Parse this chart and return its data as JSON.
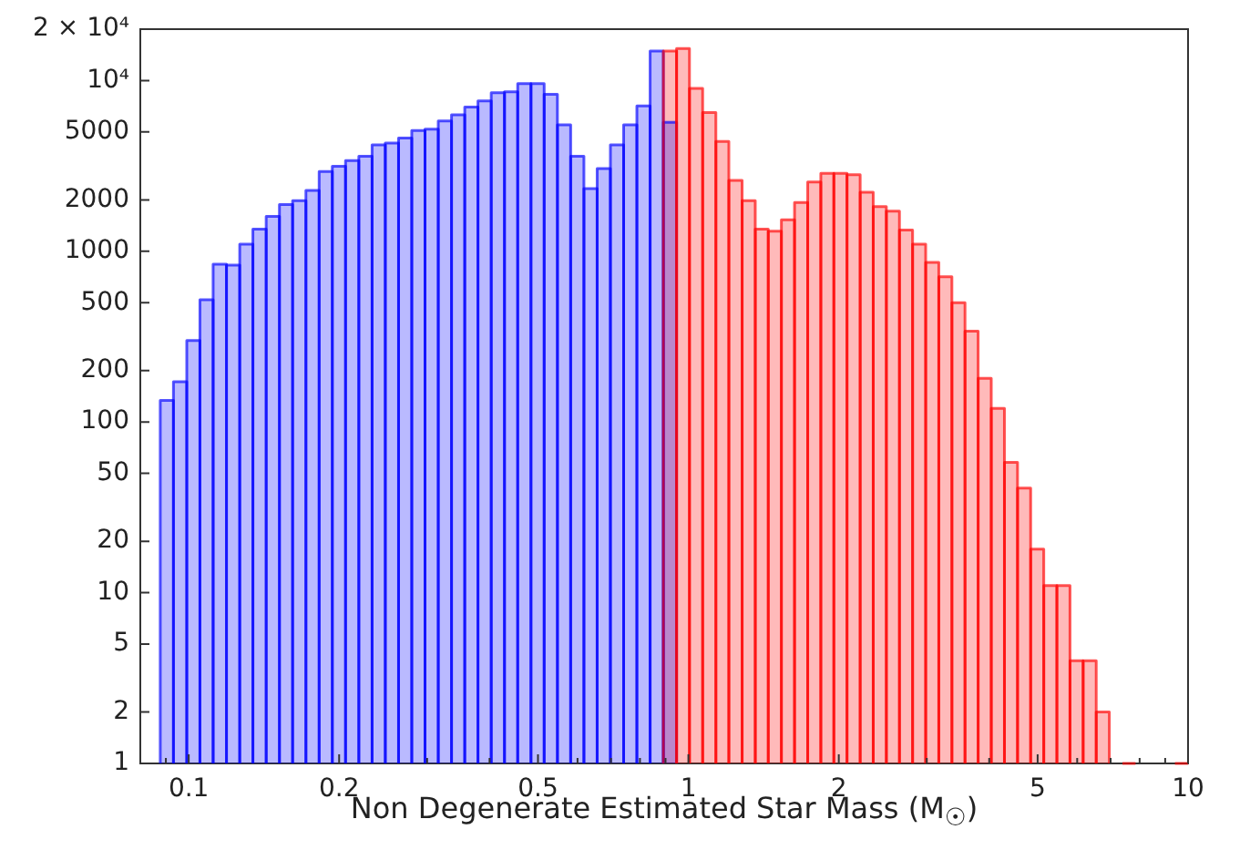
{
  "chart_data": {
    "type": "histogram",
    "xlabel": "Non Degenerate Estimated Star Mass (M$_{☉}$)",
    "log": "xy",
    "xlim": [
      0.08,
      10
    ],
    "ylim": [
      1,
      20000
    ],
    "xticks": [
      {
        "value": 0.09,
        "label": null
      },
      0.1,
      0.2,
      {
        "value": 0.3,
        "label": null
      },
      {
        "value": 0.4,
        "label": null
      },
      0.5,
      {
        "value": 0.6,
        "label": null
      },
      {
        "value": 0.7,
        "label": null
      },
      {
        "value": 0.8,
        "label": null
      },
      {
        "value": 0.9,
        "label": null
      },
      1,
      2,
      {
        "value": 3,
        "label": null
      },
      {
        "value": 4,
        "label": null
      },
      5,
      {
        "value": 6,
        "label": null
      },
      {
        "value": 7,
        "label": null
      },
      {
        "value": 8,
        "label": null
      },
      {
        "value": 9,
        "label": null
      },
      10
    ],
    "yticks": [
      1,
      2,
      5,
      10,
      20,
      50,
      100,
      200,
      500,
      1000,
      2000,
      5000,
      {
        "value": 10000,
        "label": "10⁴"
      },
      {
        "value": 20000,
        "label": "2 × 10⁴"
      }
    ],
    "bins": [
      0.0877,
      0.0932,
      0.0991,
      0.1053,
      0.1119,
      0.119,
      0.1265,
      0.1344,
      0.1429,
      0.1519,
      0.1614,
      0.1716,
      0.1824,
      0.1938,
      0.206,
      0.219,
      0.2328,
      0.2474,
      0.263,
      0.2795,
      0.2971,
      0.3158,
      0.3357,
      0.3568,
      0.3792,
      0.4031,
      0.4285,
      0.4554,
      0.4841,
      0.5145,
      0.5469,
      0.5813,
      0.6179,
      0.6568,
      0.6981,
      0.742,
      0.7887,
      0.8383,
      0.891,
      0.947,
      1.005,
      1.068,
      1.135,
      1.205,
      1.281,
      1.361,
      1.445,
      1.535,
      1.631,
      1.733,
      1.841,
      1.955,
      2.077,
      2.207,
      2.344,
      2.49,
      2.645,
      2.81,
      2.985,
      3.171,
      3.368,
      3.578,
      3.801,
      4.038,
      4.291,
      4.558,
      4.842,
      5.143,
      5.464,
      5.804,
      6.166,
      6.55,
      6.958,
      7.391,
      7.852,
      8.341,
      8.861,
      9.413,
      10
    ],
    "series": [
      {
        "color": "#0000ff",
        "values": [
          134,
          172,
          300,
          520,
          840,
          830,
          1100,
          1350,
          1600,
          1880,
          1980,
          2270,
          2930,
          3150,
          3400,
          3600,
          4200,
          4300,
          4600,
          5100,
          5200,
          5800,
          6300,
          7000,
          7600,
          8500,
          8600,
          9600,
          9600,
          8300,
          5500,
          3600,
          2330,
          3050,
          4200,
          5500,
          7100,
          14900,
          5700,
          null,
          null,
          null,
          null,
          null,
          null,
          null,
          null,
          null,
          null,
          null,
          null,
          null,
          null,
          null,
          null,
          null,
          null,
          null,
          null,
          null,
          null,
          null,
          null,
          null,
          null,
          null,
          null,
          null,
          null,
          null,
          null,
          null,
          null,
          null,
          null,
          null,
          null,
          null
        ]
      },
      {
        "color": "#ff0000",
        "values": [
          null,
          null,
          null,
          null,
          null,
          null,
          null,
          null,
          null,
          null,
          null,
          null,
          null,
          null,
          null,
          null,
          null,
          null,
          null,
          null,
          null,
          null,
          null,
          null,
          null,
          null,
          null,
          null,
          null,
          null,
          null,
          null,
          null,
          null,
          null,
          null,
          null,
          null,
          14900,
          15400,
          9000,
          6500,
          4400,
          2600,
          1980,
          1350,
          1310,
          1530,
          1930,
          2550,
          2860,
          2860,
          2810,
          2220,
          1830,
          1720,
          1330,
          1100,
          860,
          710,
          500,
          340,
          180,
          120,
          58,
          41,
          18,
          11,
          11,
          4,
          4,
          2,
          null,
          1,
          null,
          null,
          null,
          1
        ]
      }
    ]
  }
}
